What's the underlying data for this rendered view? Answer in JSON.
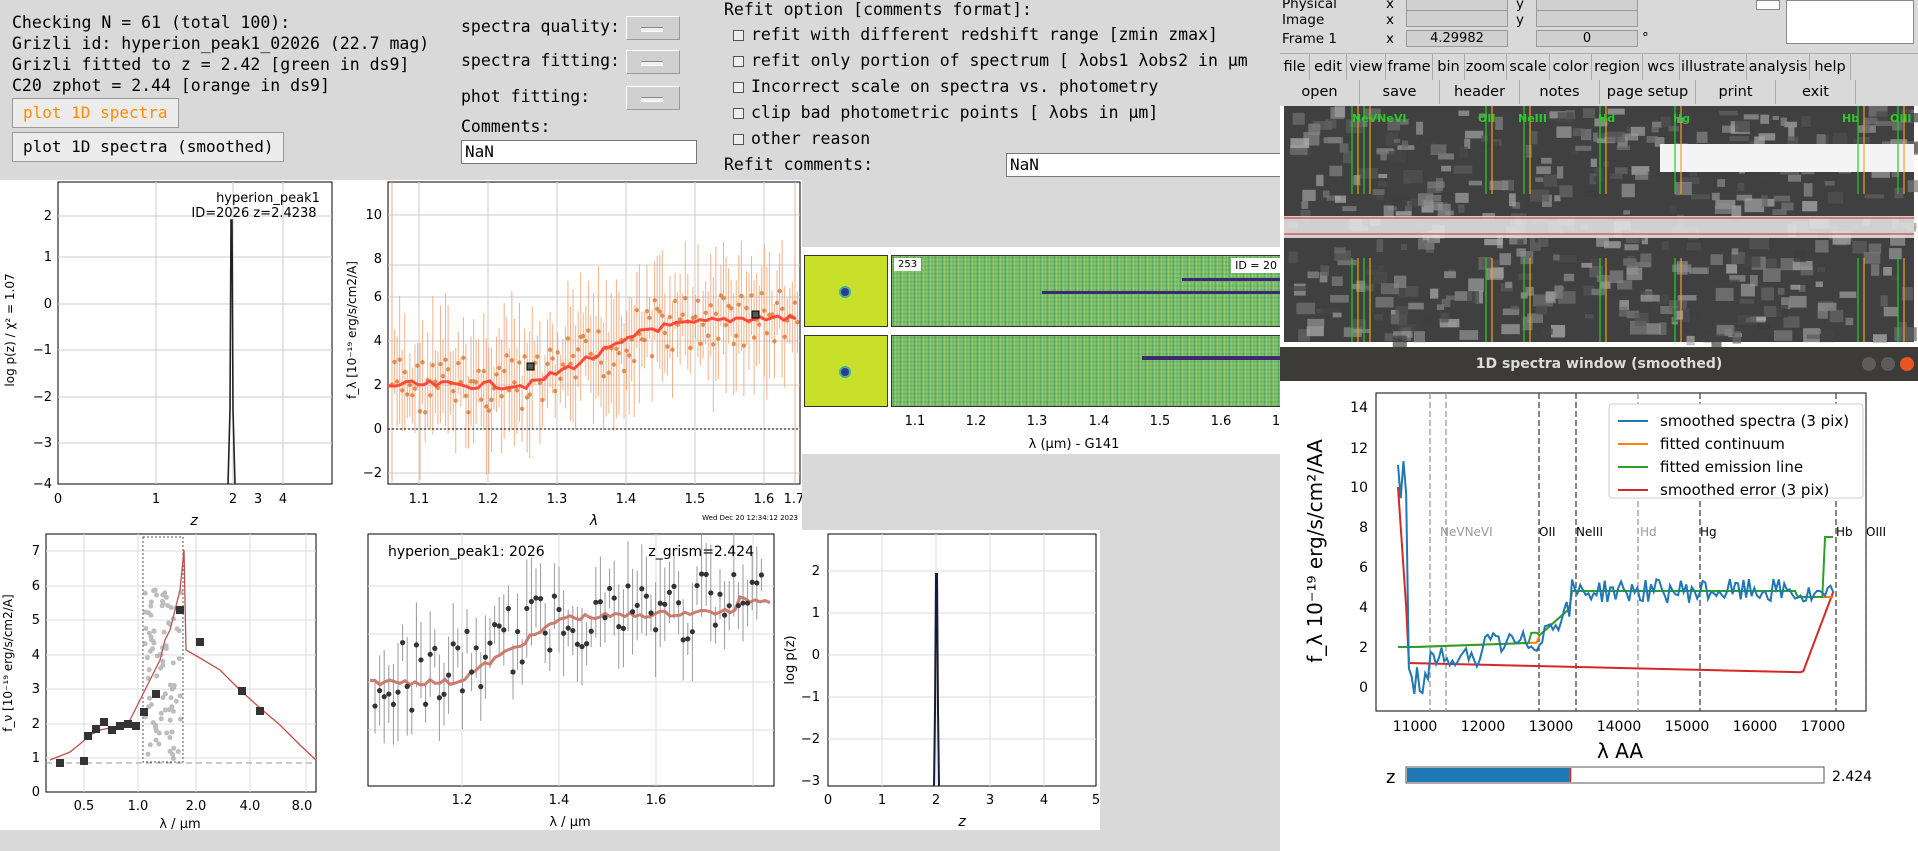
{
  "info": {
    "line1": "Checking N = 61 (total 100):",
    "line2": "Grizli id: hyperion_peak1_02026 (22.7 mag)",
    "line3": "Grizli fitted to z = 2.42 [green in ds9]",
    "line4": "C20 zphot = 2.44 [orange in ds9]"
  },
  "buttons": {
    "plot1d": "plot 1D spectra",
    "plot1d_smooth": "plot 1D spectra (smoothed)"
  },
  "quality": {
    "spectra_quality": "spectra quality:",
    "spectra_fitting": "spectra fitting:",
    "phot_fitting": "phot fitting:",
    "comments_label": "Comments:",
    "comments_value": "NaN"
  },
  "refit": {
    "header": "Refit option [comments format]:",
    "opt1": "refit with different redshift range [zmin zmax]",
    "opt2": "refit only portion of spectrum [ λobs1  λobs2 in  μm",
    "opt3": "Incorrect scale on spectra vs. photometry",
    "opt4": "clip bad photometric points [ λobs in  μm]",
    "opt5": "other reason",
    "comments_label": "Refit comments:",
    "comments_value": "NaN"
  },
  "ds9": {
    "rows": [
      {
        "label": "Physical",
        "a": "x",
        "b": "y"
      },
      {
        "label": "Image",
        "a": "x",
        "b": "y"
      },
      {
        "label": "Frame 1",
        "a": "x",
        "val1": "4.29982",
        "val2": "0",
        "deg": "°"
      }
    ],
    "menu": [
      "file",
      "edit",
      "view",
      "frame",
      "bin",
      "zoom",
      "scale",
      "color",
      "region",
      "wcs",
      "illustrate",
      "analysis",
      "help"
    ],
    "sub": [
      "open",
      "save",
      "header",
      "notes",
      "page setup",
      "print",
      "exit"
    ],
    "lines": [
      "NeVNeVI",
      "OII",
      "NeIII",
      "Hd",
      "Hg",
      "Hb",
      "OIII"
    ]
  },
  "pz_plot": {
    "title1": "hyperion_peak1",
    "title2": "ID=2026   z=2.4238",
    "ylabel": "log p(z) / χ² = 1.07",
    "xlabel": "z",
    "yticks": [
      "2",
      "1",
      "0",
      "−1",
      "−2",
      "−3",
      "−4"
    ],
    "xticks": [
      "0",
      "1",
      "2",
      "3",
      "4"
    ]
  },
  "spec_plot": {
    "ylabel": "f_λ [10⁻¹⁹ erg/s/cm2/A]",
    "xlabel": "λ",
    "yticks": [
      "10",
      "8",
      "6",
      "4",
      "2",
      "0",
      "−2"
    ],
    "xticks": [
      "1.1",
      "1.2",
      "1.3",
      "1.4",
      "1.5",
      "1.6",
      "1.7"
    ],
    "timestamp": "Wed Dec 20 12:34:12 2023"
  },
  "stamps": {
    "tag253": "253",
    "tagid": "ID = 20",
    "xlabel": "λ (μm) - G141",
    "xticks": [
      "1.1",
      "1.2",
      "1.3",
      "1.4",
      "1.5",
      "1.6",
      "1"
    ]
  },
  "sed_plot": {
    "ylabel": "f_ν [10⁻¹⁹ erg/s/cm2/A]",
    "xlabel": "λ / μm",
    "yticks": [
      "7",
      "6",
      "5",
      "4",
      "3",
      "2",
      "1",
      "0"
    ],
    "xticks": [
      "0.5",
      "1.0",
      "2.0",
      "4.0",
      "8.0"
    ]
  },
  "zoom_plot": {
    "title": "hyperion_peak1:   2026",
    "zlabel": "z_grism=2.424",
    "xlabel": "λ / μm",
    "xticks": [
      "1.2",
      "1.4",
      "1.6"
    ]
  },
  "pz2_plot": {
    "ylabel": "log p(z)",
    "xlabel": "z",
    "yticks": [
      "2",
      "1",
      "0",
      "−1",
      "−2",
      "−3"
    ],
    "xticks": [
      "0",
      "1",
      "2",
      "3",
      "4",
      "5"
    ]
  },
  "window": {
    "title": "1D spectra window (smoothed)",
    "ylabel": "f_λ 10⁻¹⁹ erg/s/cm²/AA",
    "xlabel": "λ AA",
    "yticks": [
      "14",
      "12",
      "10",
      "8",
      "6",
      "4",
      "2",
      "0"
    ],
    "xticks": [
      "11000",
      "12000",
      "13000",
      "14000",
      "15000",
      "16000",
      "17000"
    ],
    "legend": [
      "smoothed spectra (3 pix)",
      "fitted continuum",
      "fitted emission line",
      "smoothed error (3 pix)"
    ],
    "line_labels": [
      "NeVNeVI",
      "OII",
      "NeIII",
      "Hd",
      "Hg",
      "Hb",
      "OIII"
    ],
    "slider_label": "z",
    "slider_value": "2.424",
    "slider_fraction": 0.39,
    "colors": {
      "spectra": "#1f77b4",
      "continuum": "#ff7f0e",
      "emission": "#2ca02c",
      "error": "#d62728"
    }
  }
}
